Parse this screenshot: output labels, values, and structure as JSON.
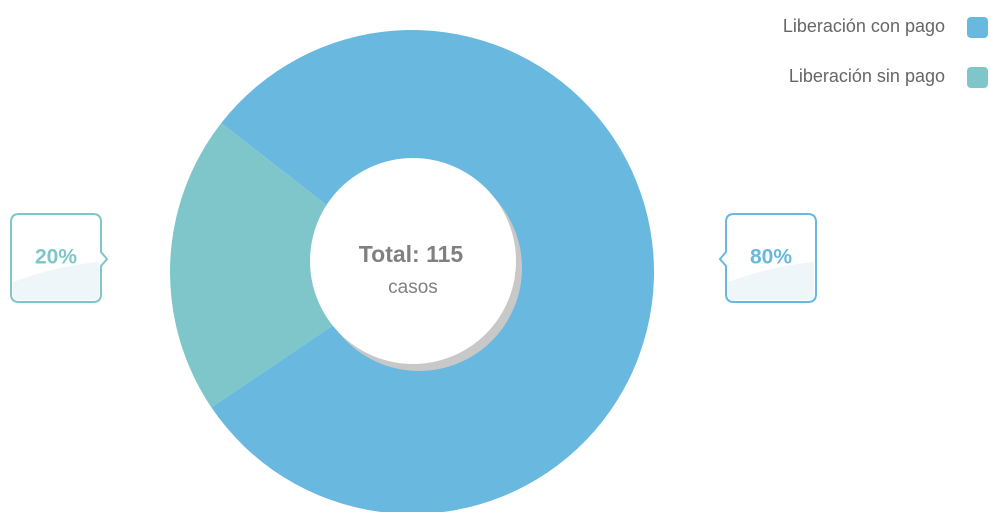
{
  "chart_data": {
    "type": "donut",
    "categories": [
      "Liberación con pago",
      "Liberación sin pago"
    ],
    "values": [
      80,
      20
    ],
    "value_labels": [
      "80%",
      "20%"
    ],
    "colors": [
      "#68b8e0",
      "#7fc6cb"
    ],
    "center_title": "Total: 115",
    "center_subtitle": "casos",
    "legend": "top-right"
  }
}
